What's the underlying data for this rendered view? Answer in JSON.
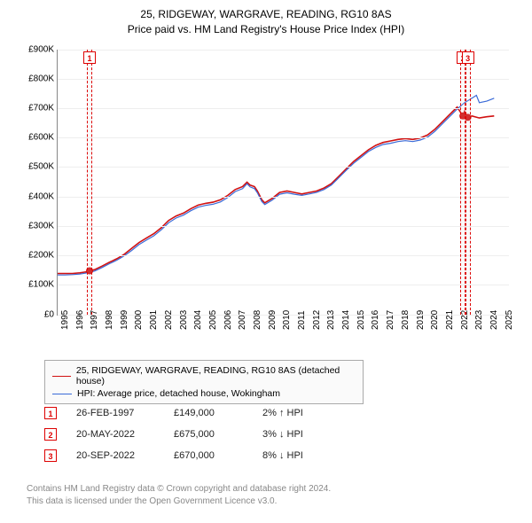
{
  "title": {
    "line1": "25, RIDGEWAY, WARGRAVE, READING, RG10 8AS",
    "line2": "Price paid vs. HM Land Registry's House Price Index (HPI)"
  },
  "chart": {
    "type": "line",
    "background_color": "#ffffff",
    "grid_color": "#eeeeee",
    "axis_color": "#888888",
    "xlim": [
      1995,
      2025.5
    ],
    "ylim": [
      0,
      900000
    ],
    "yticks": [
      {
        "v": 0,
        "label": "£0"
      },
      {
        "v": 100000,
        "label": "£100K"
      },
      {
        "v": 200000,
        "label": "£200K"
      },
      {
        "v": 300000,
        "label": "£300K"
      },
      {
        "v": 400000,
        "label": "£400K"
      },
      {
        "v": 500000,
        "label": "£500K"
      },
      {
        "v": 600000,
        "label": "£600K"
      },
      {
        "v": 700000,
        "label": "£700K"
      },
      {
        "v": 800000,
        "label": "£800K"
      },
      {
        "v": 900000,
        "label": "£900K"
      }
    ],
    "xticks": [
      1995,
      1996,
      1997,
      1998,
      1999,
      2000,
      2001,
      2002,
      2003,
      2004,
      2005,
      2006,
      2007,
      2008,
      2009,
      2010,
      2011,
      2012,
      2013,
      2014,
      2015,
      2016,
      2017,
      2018,
      2019,
      2020,
      2021,
      2022,
      2023,
      2024,
      2025
    ],
    "series": [
      {
        "name": "property",
        "legend_label": "25, RIDGEWAY, WARGRAVE, READING, RG10 8AS (detached house)",
        "color": "#d11111",
        "line_width": 1.6,
        "data": [
          [
            1995.0,
            140000
          ],
          [
            1995.5,
            140000
          ],
          [
            1996.0,
            140000
          ],
          [
            1996.5,
            142000
          ],
          [
            1997.0,
            146000
          ],
          [
            1997.16,
            149000
          ],
          [
            1997.5,
            153000
          ],
          [
            1998.0,
            165000
          ],
          [
            1998.5,
            178000
          ],
          [
            1999.0,
            190000
          ],
          [
            1999.5,
            205000
          ],
          [
            2000.0,
            225000
          ],
          [
            2000.5,
            245000
          ],
          [
            2001.0,
            260000
          ],
          [
            2001.5,
            275000
          ],
          [
            2002.0,
            295000
          ],
          [
            2002.5,
            320000
          ],
          [
            2003.0,
            335000
          ],
          [
            2003.5,
            345000
          ],
          [
            2004.0,
            360000
          ],
          [
            2004.5,
            372000
          ],
          [
            2005.0,
            378000
          ],
          [
            2005.5,
            382000
          ],
          [
            2006.0,
            390000
          ],
          [
            2006.5,
            405000
          ],
          [
            2007.0,
            425000
          ],
          [
            2007.5,
            435000
          ],
          [
            2007.8,
            450000
          ],
          [
            2008.0,
            440000
          ],
          [
            2008.3,
            435000
          ],
          [
            2008.5,
            420000
          ],
          [
            2008.8,
            390000
          ],
          [
            2009.0,
            380000
          ],
          [
            2009.5,
            395000
          ],
          [
            2010.0,
            415000
          ],
          [
            2010.5,
            420000
          ],
          [
            2011.0,
            415000
          ],
          [
            2011.5,
            410000
          ],
          [
            2012.0,
            415000
          ],
          [
            2012.5,
            420000
          ],
          [
            2013.0,
            430000
          ],
          [
            2013.5,
            445000
          ],
          [
            2014.0,
            470000
          ],
          [
            2014.5,
            495000
          ],
          [
            2015.0,
            520000
          ],
          [
            2015.5,
            540000
          ],
          [
            2016.0,
            560000
          ],
          [
            2016.5,
            575000
          ],
          [
            2017.0,
            585000
          ],
          [
            2017.5,
            590000
          ],
          [
            2018.0,
            595000
          ],
          [
            2018.5,
            598000
          ],
          [
            2019.0,
            595000
          ],
          [
            2019.5,
            600000
          ],
          [
            2020.0,
            610000
          ],
          [
            2020.5,
            630000
          ],
          [
            2021.0,
            655000
          ],
          [
            2021.5,
            680000
          ],
          [
            2022.0,
            705000
          ],
          [
            2022.39,
            675000
          ],
          [
            2022.5,
            690000
          ],
          [
            2022.72,
            670000
          ],
          [
            2023.0,
            675000
          ],
          [
            2023.5,
            668000
          ],
          [
            2024.0,
            672000
          ],
          [
            2024.5,
            675000
          ]
        ]
      },
      {
        "name": "hpi",
        "legend_label": "HPI: Average price, detached house, Wokingham",
        "color": "#3a6bd8",
        "line_width": 1.2,
        "data": [
          [
            1995.0,
            135000
          ],
          [
            1995.5,
            135000
          ],
          [
            1996.0,
            136000
          ],
          [
            1996.5,
            138000
          ],
          [
            1997.0,
            142000
          ],
          [
            1997.5,
            148000
          ],
          [
            1998.0,
            160000
          ],
          [
            1998.5,
            173000
          ],
          [
            1999.0,
            185000
          ],
          [
            1999.5,
            200000
          ],
          [
            2000.0,
            218000
          ],
          [
            2000.5,
            238000
          ],
          [
            2001.0,
            253000
          ],
          [
            2001.5,
            268000
          ],
          [
            2002.0,
            288000
          ],
          [
            2002.5,
            312000
          ],
          [
            2003.0,
            328000
          ],
          [
            2003.5,
            338000
          ],
          [
            2004.0,
            353000
          ],
          [
            2004.5,
            365000
          ],
          [
            2005.0,
            371000
          ],
          [
            2005.5,
            375000
          ],
          [
            2006.0,
            383000
          ],
          [
            2006.5,
            398000
          ],
          [
            2007.0,
            418000
          ],
          [
            2007.5,
            428000
          ],
          [
            2007.8,
            445000
          ],
          [
            2008.0,
            434000
          ],
          [
            2008.3,
            428000
          ],
          [
            2008.5,
            414000
          ],
          [
            2008.8,
            384000
          ],
          [
            2009.0,
            374000
          ],
          [
            2009.5,
            389000
          ],
          [
            2010.0,
            409000
          ],
          [
            2010.5,
            414000
          ],
          [
            2011.0,
            409000
          ],
          [
            2011.5,
            405000
          ],
          [
            2012.0,
            410000
          ],
          [
            2012.5,
            415000
          ],
          [
            2013.0,
            425000
          ],
          [
            2013.5,
            440000
          ],
          [
            2014.0,
            465000
          ],
          [
            2014.5,
            490000
          ],
          [
            2015.0,
            514000
          ],
          [
            2015.5,
            534000
          ],
          [
            2016.0,
            554000
          ],
          [
            2016.5,
            568000
          ],
          [
            2017.0,
            578000
          ],
          [
            2017.5,
            582000
          ],
          [
            2018.0,
            588000
          ],
          [
            2018.5,
            591000
          ],
          [
            2019.0,
            588000
          ],
          [
            2019.5,
            593000
          ],
          [
            2020.0,
            603000
          ],
          [
            2020.5,
            623000
          ],
          [
            2021.0,
            648000
          ],
          [
            2021.5,
            673000
          ],
          [
            2022.0,
            698000
          ],
          [
            2022.5,
            720000
          ],
          [
            2023.0,
            735000
          ],
          [
            2023.3,
            745000
          ],
          [
            2023.5,
            720000
          ],
          [
            2024.0,
            725000
          ],
          [
            2024.5,
            735000
          ]
        ]
      }
    ],
    "event_markers": [
      {
        "idx": "1",
        "x": 1997.16,
        "y": 149000,
        "band_width_years": 0.35
      },
      {
        "idx": "2",
        "x": 2022.39,
        "y": 675000,
        "band_width_years": 0.35
      },
      {
        "idx": "3",
        "x": 2022.72,
        "y": 670000,
        "band_width_years": 0.35
      }
    ],
    "marker_band_border": "#d00",
    "point_marker_color": "#d11111",
    "point_marker_radius": 4
  },
  "legend_box_border": "#aaaaaa",
  "sales": [
    {
      "idx": "1",
      "date": "26-FEB-1997",
      "price": "£149,000",
      "delta": "2% ↑ HPI"
    },
    {
      "idx": "2",
      "date": "20-MAY-2022",
      "price": "£675,000",
      "delta": "3% ↓ HPI"
    },
    {
      "idx": "3",
      "date": "20-SEP-2022",
      "price": "£670,000",
      "delta": "8% ↓ HPI"
    }
  ],
  "footer": {
    "line1": "Contains HM Land Registry data © Crown copyright and database right 2024.",
    "line2": "This data is licensed under the Open Government Licence v3.0."
  }
}
